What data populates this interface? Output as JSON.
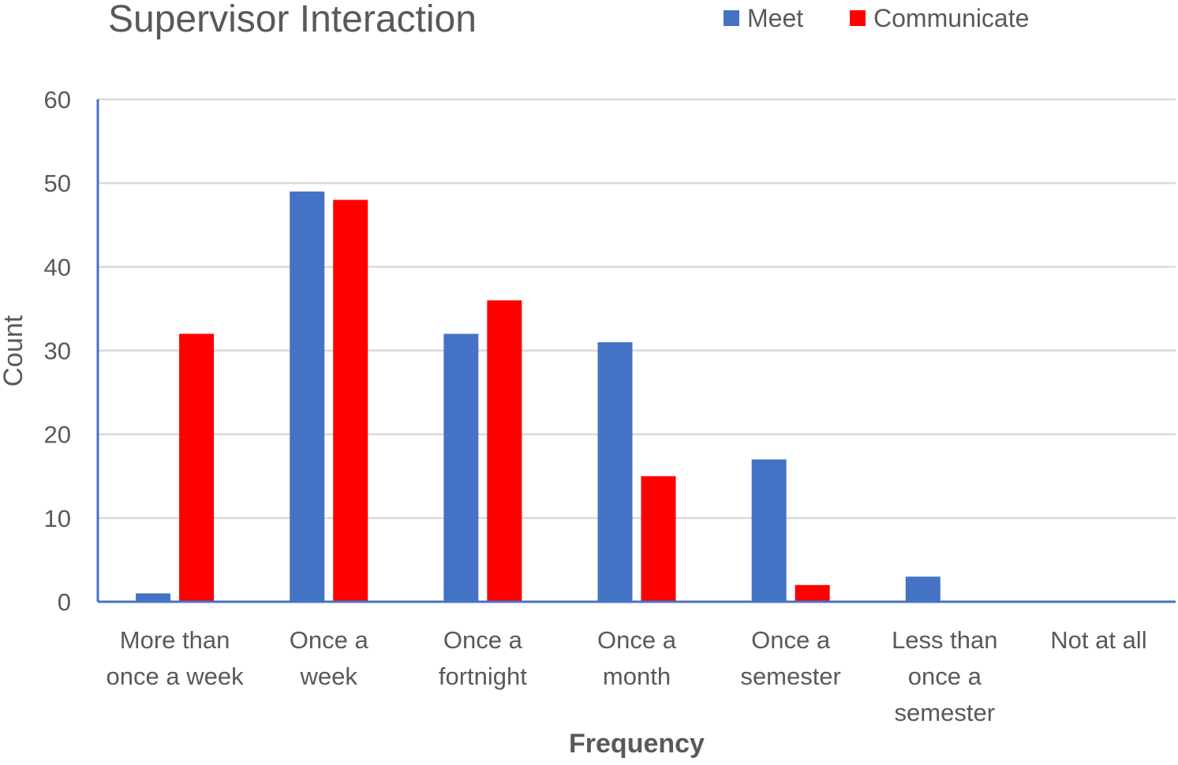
{
  "chart_data": {
    "type": "bar",
    "title": "Supervisor Interaction",
    "xlabel": "Frequency",
    "ylabel": "Count",
    "ylim": [
      0,
      60
    ],
    "yticks": [
      0,
      10,
      20,
      30,
      40,
      50,
      60
    ],
    "grid": true,
    "legend_position": "top-right",
    "categories": [
      [
        "More than",
        "once a week"
      ],
      [
        "Once a",
        "week"
      ],
      [
        "Once a",
        "fortnight"
      ],
      [
        "Once a",
        "month"
      ],
      [
        "Once a",
        "semester"
      ],
      [
        "Less than",
        "once a",
        "semester"
      ],
      [
        "Not at all"
      ]
    ],
    "series": [
      {
        "name": "Meet",
        "color": "#4472C4",
        "values": [
          1,
          49,
          32,
          31,
          17,
          3,
          0
        ]
      },
      {
        "name": "Communicate",
        "color": "#FF0000",
        "values": [
          32,
          48,
          36,
          15,
          2,
          0,
          0
        ]
      }
    ]
  }
}
